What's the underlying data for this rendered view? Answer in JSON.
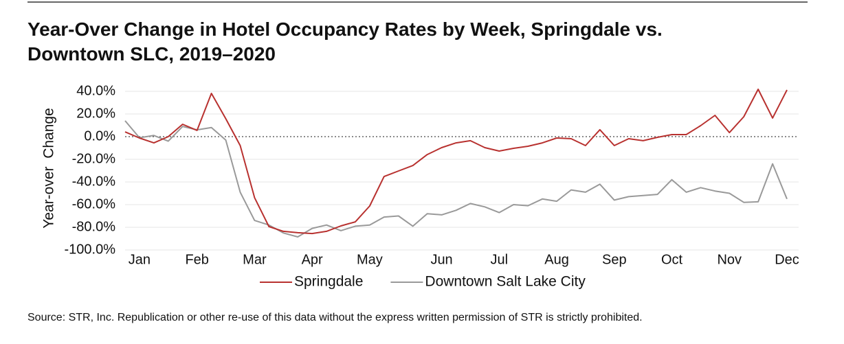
{
  "chart_data": {
    "type": "line",
    "title": "Year-Over Change in Hotel Occupancy Rates by Week, Springdale vs. Downtown SLC, 2019–2020",
    "y_label": "Year-over  Change",
    "source": "Source: STR, Inc. Republication or other re-use of this data without the express written permission of STR is strictly prohibited.",
    "categories": [
      null,
      "Jan",
      null,
      null,
      null,
      "Feb",
      null,
      null,
      null,
      "Mar",
      null,
      null,
      null,
      "Apr",
      null,
      null,
      null,
      "May",
      null,
      null,
      null,
      null,
      "Jun",
      null,
      null,
      null,
      "Jul",
      null,
      null,
      null,
      "Aug",
      null,
      null,
      null,
      "Sep",
      null,
      null,
      null,
      "Oct",
      null,
      null,
      null,
      "Nov",
      null,
      null,
      null,
      "Dec"
    ],
    "series": [
      {
        "name": "Springdale",
        "color": "#b8312f",
        "values": [
          4.2,
          -1.2,
          -5.5,
          0,
          10.9,
          5.5,
          38.2,
          15.8,
          -7.9,
          -53.9,
          -79.4,
          -83.6,
          -84.8,
          -85.5,
          -83.6,
          -78.8,
          -75.2,
          -61.2,
          -35.2,
          -30.3,
          -25.5,
          -15.8,
          -9.7,
          -5.5,
          -3.6,
          -9.7,
          -12.7,
          -10.3,
          -8.5,
          -5.5,
          -1.2,
          -1.8,
          -7.9,
          6.1,
          -7.9,
          -1.8,
          -3.6,
          -0.6,
          1.8,
          1.8,
          9.7,
          18.8,
          3.6,
          17.6,
          41.8,
          16.4,
          41.2
        ]
      },
      {
        "name": "Downtown Salt Lake City",
        "color": "#999999",
        "values": [
          14,
          -1,
          1,
          -4,
          9,
          6,
          8,
          -3,
          -49,
          -74,
          -78,
          -85,
          -88.5,
          -81,
          -78,
          -83,
          -79,
          -78,
          -71,
          -70,
          -79,
          -68,
          -69,
          -65,
          -59,
          -62,
          -67,
          -60,
          -61,
          -55,
          -57,
          -47,
          -49,
          -42,
          -56,
          -53,
          -52,
          -51,
          -38,
          -49,
          -45,
          -48,
          -50,
          -58,
          -57.5,
          -24,
          -55
        ]
      }
    ],
    "ylim": [
      -100,
      40
    ],
    "yticks": [
      {
        "value": 40,
        "label": "40.0%"
      },
      {
        "value": 20,
        "label": "20.0%"
      },
      {
        "value": 0,
        "label": "0.0%"
      },
      {
        "value": -20,
        "label": "-20.0%"
      },
      {
        "value": -40,
        "label": "-40.0%"
      },
      {
        "value": -60,
        "label": "-60.0%"
      },
      {
        "value": -80,
        "label": "-80.0%"
      },
      {
        "value": -100,
        "label": "-100.0%"
      }
    ],
    "grid": true
  }
}
